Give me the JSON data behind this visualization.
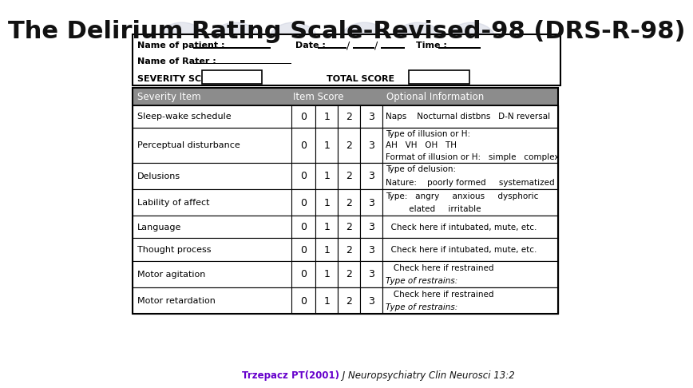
{
  "title": "The Delirium Rating Scale-Revised-98 (DRS-R-98)",
  "title_fontsize": 22,
  "bg_color": "#ffffff",
  "header_rows": [
    "Severity Item",
    "Item Score",
    "Optional Information"
  ],
  "rows": [
    {
      "item": "Sleep-wake schedule",
      "scores": [
        0,
        1,
        2,
        3
      ],
      "info": "Naps    Nocturnal distbns   D-N reversal",
      "info_italic_line": -1
    },
    {
      "item": "Perceptual disturbance",
      "scores": [
        0,
        1,
        2,
        3
      ],
      "info": "Type of illusion or H:\nAH   VH   OH   TH\nFormat of illusion or H:   simple   complex",
      "info_italic_line": -1
    },
    {
      "item": "Delusions",
      "scores": [
        0,
        1,
        2,
        3
      ],
      "info": "Type of delusion:\nNature:    poorly formed     systematized",
      "info_italic_line": -1
    },
    {
      "item": "Lability of affect",
      "scores": [
        0,
        1,
        2,
        3
      ],
      "info": "Type:   angry     anxious     dysphoric\n         elated     irritable",
      "info_italic_line": -1
    },
    {
      "item": "Language",
      "scores": [
        0,
        1,
        2,
        3
      ],
      "info": "  Check here if intubated, mute, etc.",
      "info_italic_line": -1
    },
    {
      "item": "Thought process",
      "scores": [
        0,
        1,
        2,
        3
      ],
      "info": "  Check here if intubated, mute, etc.",
      "info_italic_line": -1
    },
    {
      "item": "Motor agitation",
      "scores": [
        0,
        1,
        2,
        3
      ],
      "info": "   Check here if restrained\nType of restrains:",
      "info_italic_line": 1
    },
    {
      "item": "Motor retardation",
      "scores": [
        0,
        1,
        2,
        3
      ],
      "info": "   Check here if restrained\nType of restrains:",
      "info_italic_line": 1
    }
  ],
  "footer_bold": "Trzepacz PT(2001)",
  "footer_italic": " J Neuropsychiatry Clin Neurosci 13:2",
  "footer_bold_color": "#6600cc",
  "footer_italic_color": "#111111",
  "circle_color": "#c8ccdc",
  "circle_alpha": 0.45,
  "table_header_color": "#8c8c8c",
  "outer_box_color": "#000000"
}
